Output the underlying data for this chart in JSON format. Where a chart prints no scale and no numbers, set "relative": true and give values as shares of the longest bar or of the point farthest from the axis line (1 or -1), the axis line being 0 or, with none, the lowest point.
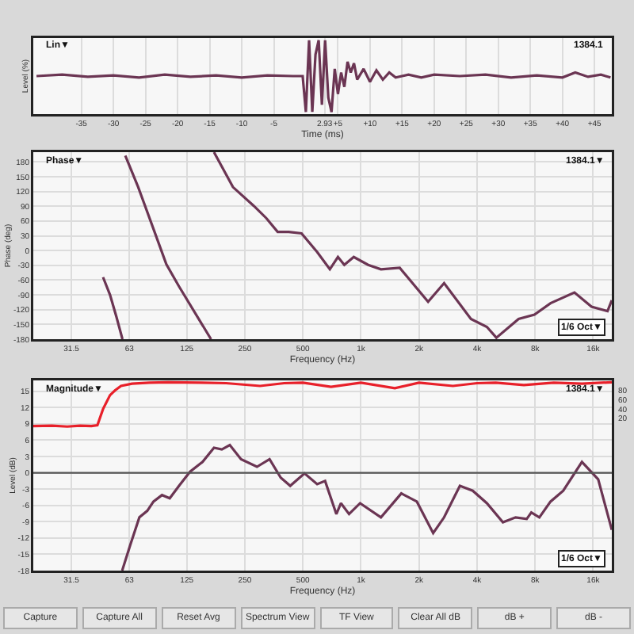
{
  "chart_data": [
    {
      "type": "line",
      "relative": true,
      "xlabel": "Time (ms)",
      "ylabel": "Level (%)",
      "annotations": [
        "Lin▼",
        "1384.1"
      ],
      "grid": "x",
      "line_style": "solid",
      "xlim": [
        -42.5,
        47.7
      ],
      "xticks": [
        -35,
        -30,
        -25,
        -20,
        -15,
        -10,
        -5,
        2.93,
        {
          "value": 5,
          "label": "+5"
        },
        {
          "value": 10,
          "label": "+10"
        },
        {
          "value": 15,
          "label": "+15"
        },
        {
          "value": 20,
          "label": "+20"
        },
        {
          "value": 25,
          "label": "+25"
        },
        {
          "value": 30,
          "label": "+30"
        },
        {
          "value": 35,
          "label": "+35"
        },
        {
          "value": 40,
          "label": "+40"
        },
        {
          "value": 45,
          "label": "+45"
        }
      ],
      "x": [
        -42,
        -38,
        -34,
        -30,
        -26,
        -22,
        -18,
        -14,
        -10,
        -6,
        -2,
        -0.5,
        0,
        0.5,
        1,
        1.5,
        2,
        2.5,
        3,
        3.5,
        4,
        4.5,
        5,
        5.5,
        6,
        6.5,
        7,
        7.5,
        8,
        9,
        10,
        11,
        12,
        13,
        14,
        16,
        18,
        20,
        24,
        28,
        32,
        36,
        40,
        42,
        44,
        46,
        47.5
      ],
      "series": [
        {
          "color": "#6b3553",
          "values": [
            0.5,
            0.52,
            0.49,
            0.51,
            0.48,
            0.52,
            0.49,
            0.51,
            0.48,
            0.51,
            0.5,
            0.5,
            0,
            1,
            0,
            0.8,
            1,
            0.1,
            1,
            0.2,
            0,
            0.6,
            0.25,
            0.55,
            0.35,
            0.7,
            0.55,
            0.68,
            0.45,
            0.6,
            0.42,
            0.58,
            0.45,
            0.55,
            0.48,
            0.52,
            0.48,
            0.52,
            0.5,
            0.52,
            0.48,
            0.51,
            0.48,
            0.55,
            0.49,
            0.52,
            0.48
          ]
        }
      ]
    },
    {
      "type": "line",
      "xlabel": "Frequency (Hz)",
      "ylabel": "Phase (deg)",
      "annotations": [
        "Phase▼",
        "1384.1▼",
        "1/6 Oct▼"
      ],
      "grid": true,
      "line_style": "solid",
      "log": "x",
      "xlim": [
        20,
        20000
      ],
      "xticks": [
        {
          "value": 31.5,
          "label": "31.5"
        },
        63,
        125,
        250,
        500,
        {
          "value": 1000,
          "label": "1k"
        },
        {
          "value": 2000,
          "label": "2k"
        },
        {
          "value": 4000,
          "label": "4k"
        },
        {
          "value": 8000,
          "label": "8k"
        },
        {
          "value": 16000,
          "label": "16k"
        }
      ],
      "ylim": [
        -180,
        200
      ],
      "yticks": [
        -180,
        -150,
        -120,
        -90,
        -60,
        -30,
        0,
        30,
        60,
        90,
        120,
        150,
        180
      ],
      "series": [
        {
          "color": "#6b3553",
          "x": [
            46,
            50,
            54,
            58,
            null,
            60,
            70,
            84,
            98,
            114,
            167,
            null,
            173,
            217,
            278,
            323,
            370,
            422,
            492,
            593,
            690,
            760,
            820,
            918,
            1090,
            1270,
            1590,
            2230,
            2700,
            3720,
            4500,
            5040,
            6570,
            7940,
            9620,
            12800,
            15700,
            19000,
            20000
          ],
          "values": [
            -54,
            -90,
            -135,
            -180,
            null,
            193,
            129,
            44,
            -28,
            -73,
            -180,
            null,
            200,
            129,
            91,
            66,
            38,
            38,
            35,
            -3,
            -38,
            -13,
            -29,
            -13,
            -29,
            -38,
            -35,
            -104,
            -66,
            -139,
            -155,
            -177,
            -139,
            -130,
            -107,
            -85,
            -114,
            -123,
            -101
          ]
        }
      ]
    },
    {
      "type": "line",
      "xlabel": "Frequency (Hz)",
      "ylabel": "Level (dB)",
      "annotations": [
        "Magnitude▼",
        "1384.1▼",
        "1/6 Oct▼"
      ],
      "grid": true,
      "line_style": "solid",
      "log": "x",
      "xlim": [
        20,
        20000
      ],
      "xticks": [
        {
          "value": 31.5,
          "label": "31.5"
        },
        63,
        125,
        250,
        500,
        {
          "value": 1000,
          "label": "1k"
        },
        {
          "value": 2000,
          "label": "2k"
        },
        {
          "value": 4000,
          "label": "4k"
        },
        {
          "value": 8000,
          "label": "8k"
        },
        {
          "value": 16000,
          "label": "16k"
        }
      ],
      "ylim": [
        -18,
        17
      ],
      "yticks": [
        -18,
        -15,
        -12,
        -9,
        -6,
        -3,
        0,
        3,
        6,
        9,
        12,
        15
      ],
      "y2lim": [
        -310,
        102
      ],
      "y2ticks": [
        20,
        40,
        60,
        80
      ],
      "ref_lines": [
        {
          "axis": "y",
          "value": 0,
          "color": "#555555"
        }
      ],
      "series": [
        {
          "color": "#6b3553",
          "x": [
            57.8,
            63.5,
            71,
            78,
            84,
            93,
            102,
            114,
            130,
            151,
            173,
            190,
            209,
            239,
            289,
            336,
            384,
            430,
            510,
            593,
            652,
            746,
            788,
            868,
            990,
            1270,
            1620,
            1950,
            2370,
            2700,
            3260,
            3800,
            4500,
            5450,
            6340,
            7240,
            7650,
            8420,
            9620,
            11200,
            14000,
            17000,
            20000
          ],
          "values": [
            -18,
            -13.4,
            -8.2,
            -7,
            -5.3,
            -4.1,
            -4.7,
            -2.4,
            0.2,
            2,
            4.6,
            4.3,
            5.1,
            2.5,
            1.1,
            2.5,
            -0.9,
            -2.4,
            -0.1,
            -2.1,
            -1.5,
            -7.6,
            -5.6,
            -7.6,
            -5.6,
            -8.2,
            -3.8,
            -5.3,
            -11.1,
            -8.2,
            -2.4,
            -3.3,
            -5.6,
            -9.1,
            -8.2,
            -8.5,
            -7.3,
            -8.2,
            -5.3,
            -3.3,
            2,
            -1.2,
            -10.5
          ]
        },
        {
          "color": "#e8202a",
          "axis": "y2",
          "x": [
            20,
            25,
            30,
            35,
            40,
            43,
            46,
            50,
            53,
            57,
            65,
            80,
            100,
            150,
            200,
            300,
            400,
            500,
            700,
            1000,
            1500,
            2000,
            3000,
            4000,
            5000,
            7000,
            10000,
            14000,
            20000
          ],
          "values": [
            3,
            4,
            2,
            4,
            3,
            5,
            40,
            70,
            80,
            90,
            95,
            97,
            98,
            97,
            96,
            90,
            96,
            97,
            88,
            97,
            85,
            97,
            90,
            96,
            97,
            92,
            97,
            95,
            98
          ]
        }
      ]
    },
    {
      "type": "other",
      "annotations": [
        "Capture",
        "Capture All",
        "Reset Avg",
        "Spectrum View",
        "TF View",
        "Clear All dB",
        "dB +",
        "dB -"
      ]
    }
  ]
}
